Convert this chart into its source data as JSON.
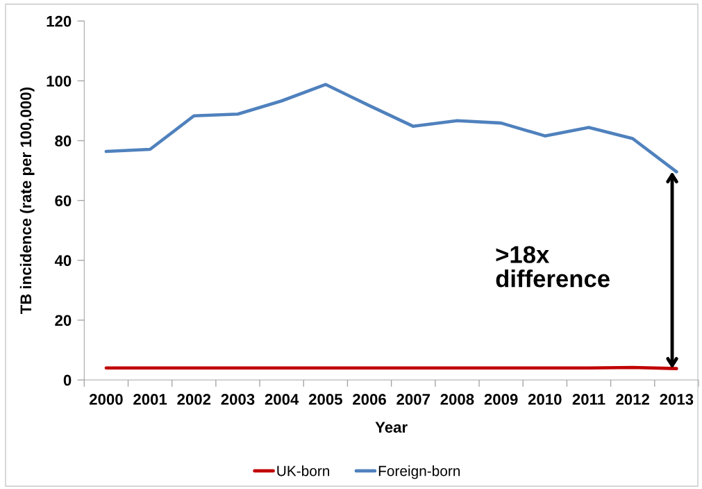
{
  "chart_data": {
    "type": "line",
    "xlabel": "Year",
    "ylabel": "TB incidence (rate per 100,000)",
    "categories": [
      "2000",
      "2001",
      "2002",
      "2003",
      "2004",
      "2005",
      "2006",
      "2007",
      "2008",
      "2009",
      "2010",
      "2011",
      "2012",
      "2013"
    ],
    "series": [
      {
        "name": "UK-born",
        "color": "#c00000",
        "values": [
          4.0,
          4.0,
          4.0,
          4.0,
          4.0,
          4.0,
          4.0,
          4.0,
          4.0,
          4.0,
          4.0,
          4.0,
          4.2,
          3.8
        ]
      },
      {
        "name": "Foreign-born",
        "color": "#4f81bd",
        "values": [
          76.4,
          77.1,
          88.3,
          88.9,
          93.3,
          98.8,
          91.7,
          84.8,
          86.7,
          85.9,
          81.6,
          84.4,
          80.7,
          69.6
        ]
      }
    ],
    "ylim": [
      0,
      120
    ],
    "yticks": [
      0,
      20,
      40,
      60,
      80,
      100,
      120
    ],
    "grid": false,
    "legend": "bottom",
    "line_style": "solid",
    "annotations": [
      ">18x\ndifference"
    ]
  }
}
